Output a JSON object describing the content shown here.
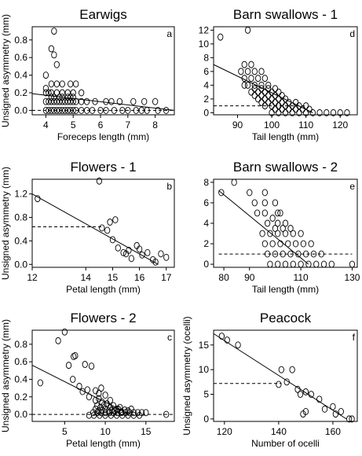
{
  "figure": {
    "panels_order": [
      "a",
      "d",
      "b",
      "e",
      "c",
      "f"
    ]
  },
  "chart_data": [
    {
      "id": "a",
      "letter": "a",
      "type": "scatter",
      "title": "Earwigs",
      "xlabel": "Foreceps length (mm)",
      "ylabel": "Unsigned asymmetry (mm)",
      "xlim": [
        3.5,
        8.7
      ],
      "ylim": [
        -0.05,
        0.95
      ],
      "xticks": [
        4,
        5,
        6,
        7,
        8
      ],
      "yticks": [
        0.0,
        0.2,
        0.4,
        0.6,
        0.8
      ],
      "ytick_labels": [
        "0.0",
        "0.2",
        "0.4",
        "0.6",
        "0.8"
      ],
      "trend": {
        "x": [
          3.5,
          8.7
        ],
        "y": [
          0.19,
          0.0
        ]
      },
      "dashed": {
        "x": [
          3.5,
          8.7
        ],
        "y": [
          0.0,
          0.0
        ]
      },
      "points": {
        "x": [
          4.3,
          4.2,
          4.3,
          4.4,
          4.0,
          4.2,
          4.4,
          4.6,
          4.9,
          5.1,
          4.0,
          4.1,
          4.2,
          4.4,
          4.6,
          4.8,
          5.0,
          5.3,
          4.0,
          4.2,
          4.3,
          4.5,
          4.6,
          4.8,
          4.9,
          5.0,
          4.0,
          4.1,
          4.2,
          4.3,
          4.4,
          4.5,
          4.6,
          4.7,
          4.8,
          4.9,
          5.0,
          5.1,
          5.3,
          5.5,
          5.8,
          6.2,
          6.4,
          6.7,
          7.2,
          7.6,
          8.0,
          4.0,
          4.1,
          4.2,
          4.3,
          4.4,
          4.5,
          4.6,
          4.7,
          4.8,
          4.9,
          5.0,
          5.1,
          5.3,
          5.5,
          5.7,
          6.0,
          6.2,
          6.5,
          6.8,
          7.0,
          7.3,
          7.5,
          7.7,
          8.1,
          8.4
        ],
        "y": [
          0.9,
          0.7,
          0.63,
          0.52,
          0.4,
          0.3,
          0.3,
          0.3,
          0.3,
          0.3,
          0.2,
          0.2,
          0.2,
          0.2,
          0.2,
          0.2,
          0.2,
          0.2,
          0.25,
          0.15,
          0.15,
          0.15,
          0.15,
          0.15,
          0.15,
          0.15,
          0.1,
          0.1,
          0.1,
          0.1,
          0.1,
          0.1,
          0.1,
          0.1,
          0.1,
          0.1,
          0.1,
          0.1,
          0.1,
          0.1,
          0.1,
          0.1,
          0.1,
          0.1,
          0.1,
          0.1,
          0.1,
          0.0,
          0.0,
          0.0,
          0.0,
          0.0,
          0.0,
          0.0,
          0.0,
          0.0,
          0.0,
          0.0,
          0.0,
          0.0,
          0.0,
          0.0,
          0.0,
          0.0,
          0.0,
          0.0,
          0.0,
          0.0,
          0.0,
          0.0,
          0.0,
          0.0
        ]
      }
    },
    {
      "id": "d",
      "letter": "d",
      "type": "scatter",
      "title": "Barn swallows - 1",
      "xlabel": "Tail length (mm)",
      "ylabel": "",
      "xlim": [
        83,
        125
      ],
      "ylim": [
        -0.3,
        12.5
      ],
      "xticks": [
        90,
        100,
        110,
        120
      ],
      "yticks": [
        0,
        2,
        4,
        6,
        8,
        10,
        12
      ],
      "ytick_labels": [
        "0",
        "2",
        "4",
        "6",
        "8",
        "10",
        "12"
      ],
      "trend": {
        "x": [
          83,
          112
        ],
        "y": [
          7.0,
          0.0
        ]
      },
      "dashed": {
        "x": [
          83,
          110
        ],
        "y": [
          1.0,
          1.0
        ]
      },
      "points": {
        "x": [
          85,
          93,
          92,
          94,
          91,
          93,
          95,
          97,
          92,
          94,
          96,
          98,
          92,
          95,
          97,
          99,
          93,
          95,
          97,
          99,
          101,
          94,
          96,
          98,
          100,
          102,
          95,
          97,
          99,
          101,
          103,
          96,
          98,
          100,
          102,
          104,
          97,
          99,
          101,
          103,
          105,
          107,
          98,
          100,
          102,
          104,
          106,
          108,
          110,
          101,
          103,
          105,
          107,
          109,
          111,
          100,
          102,
          104,
          106,
          108,
          110,
          112,
          114,
          116,
          118,
          120,
          122
        ],
        "y": [
          11,
          12,
          7,
          7,
          6,
          6,
          6,
          6,
          5,
          5,
          5,
          5,
          4,
          4,
          4,
          4,
          4,
          3.5,
          3.5,
          3.5,
          3.5,
          3,
          3,
          3,
          3,
          3,
          2.5,
          2.5,
          2.5,
          2.5,
          2.5,
          2,
          2,
          2,
          2,
          2,
          1.5,
          1.5,
          1.5,
          1.5,
          1.5,
          1.5,
          1,
          1,
          1,
          1,
          1,
          1,
          1,
          0.5,
          0.5,
          0.5,
          0.5,
          0.5,
          0.5,
          0,
          0,
          0,
          0,
          0,
          0,
          0,
          0,
          0,
          0,
          0,
          0
        ]
      }
    },
    {
      "id": "b",
      "letter": "b",
      "type": "scatter",
      "title": "Flowers - 1",
      "xlabel": "Petal length (mm)",
      "ylabel": "Unsigned asymmetry (mm)",
      "xlim": [
        12.0,
        17.3
      ],
      "ylim": [
        -0.05,
        1.45
      ],
      "xticks": [
        12,
        14,
        15,
        16,
        17
      ],
      "yticks": [
        0.0,
        0.4,
        0.8,
        1.2
      ],
      "ytick_labels": [
        "0.0",
        "0.4",
        "0.8",
        "1.2"
      ],
      "trend": {
        "x": [
          12.0,
          16.7
        ],
        "y": [
          1.2,
          0.0
        ]
      },
      "dashed": {
        "x": [
          12.0,
          14.6
        ],
        "y": [
          0.64,
          0.64
        ]
      },
      "points": {
        "x": [
          12.2,
          14.5,
          14.6,
          14.8,
          14.9,
          15.1,
          15.0,
          15.2,
          15.4,
          15.5,
          15.6,
          15.7,
          15.9,
          16.0,
          16.1,
          16.3,
          16.5,
          16.6,
          16.8,
          17.0
        ],
        "y": [
          1.12,
          1.42,
          0.62,
          0.58,
          0.72,
          0.76,
          0.42,
          0.28,
          0.2,
          0.18,
          0.24,
          0.1,
          0.32,
          0.26,
          0.16,
          0.2,
          0.08,
          0.04,
          0.18,
          0.12
        ]
      }
    },
    {
      "id": "e",
      "letter": "e",
      "type": "scatter",
      "title": "Barn swallows - 2",
      "xlabel": "Tail length (mm)",
      "ylabel": "",
      "xlim": [
        76,
        132
      ],
      "ylim": [
        -0.3,
        8.3
      ],
      "xticks": [
        80,
        90,
        110,
        130
      ],
      "xtick_positions": [
        80,
        90,
        110,
        130
      ],
      "yticks": [
        0,
        2,
        4,
        6,
        8
      ],
      "ytick_labels": [
        "0",
        "2",
        "4",
        "6",
        "8"
      ],
      "trend": {
        "x": [
          78,
          113
        ],
        "y": [
          7.2,
          0.0
        ]
      },
      "dashed": {
        "x": [
          78,
          130
        ],
        "y": [
          1.0,
          1.0
        ]
      },
      "points": {
        "x": [
          79,
          84,
          90,
          96,
          100,
          92,
          96,
          101,
          102,
          93,
          96,
          99,
          101,
          104,
          97,
          100,
          103,
          106,
          95,
          98,
          101,
          104,
          107,
          110,
          96,
          99,
          102,
          105,
          108,
          111,
          114,
          97,
          100,
          103,
          106,
          109,
          112,
          115,
          118,
          98,
          101,
          104,
          107,
          110,
          113,
          116,
          119,
          122,
          130
        ],
        "y": [
          7,
          8,
          7,
          7,
          6,
          6,
          6,
          5,
          5,
          5,
          5,
          4.5,
          4,
          4,
          4,
          3.5,
          3.5,
          3.5,
          3,
          3,
          3,
          3,
          3,
          3,
          2,
          2,
          2,
          2,
          2,
          2,
          2,
          1,
          1,
          1,
          1,
          1,
          1,
          1,
          1,
          0,
          0,
          0,
          0,
          0,
          0,
          0,
          0,
          0,
          0
        ]
      }
    },
    {
      "id": "c",
      "letter": "c",
      "type": "scatter",
      "title": "Flowers - 2",
      "xlabel": "Petal length (mm)",
      "ylabel": "Unsigned asymmetry (mm)",
      "xlim": [
        1.0,
        18.5
      ],
      "ylim": [
        -0.08,
        0.96
      ],
      "xticks": [
        5,
        10,
        15
      ],
      "yticks": [
        0.0,
        0.2,
        0.4,
        0.6,
        0.8
      ],
      "ytick_labels": [
        "0.0",
        "0.2",
        "0.4",
        "0.6",
        "0.8"
      ],
      "trend": {
        "x": [
          1.0,
          13.0
        ],
        "y": [
          0.56,
          0.0
        ]
      },
      "dashed": {
        "x": [
          1.0,
          18.5
        ],
        "y": [
          0.0,
          0.0
        ]
      },
      "points": {
        "x": [
          2.0,
          4.2,
          5.0,
          6.3,
          6.1,
          5.5,
          7.5,
          8.3,
          6.0,
          6.8,
          7.8,
          8.8,
          9.2,
          9.5,
          10.0,
          7.2,
          8.0,
          8.8,
          9.2,
          9.6,
          10.2,
          10.6,
          9.0,
          9.4,
          9.8,
          10.2,
          10.6,
          11.0,
          11.4,
          11.8,
          8.8,
          9.2,
          9.6,
          10.0,
          10.4,
          10.8,
          11.2,
          11.6,
          12.0,
          12.4,
          12.8,
          13.2,
          8.5,
          9.0,
          9.5,
          10.0,
          10.5,
          11.0,
          11.5,
          12.0,
          12.5,
          13.0,
          13.5,
          14.0,
          14.5,
          15.0,
          17.5,
          8.0,
          8.6,
          9.3,
          10.0,
          10.7,
          11.4,
          12.1,
          12.8,
          13.5,
          14.2
        ],
        "y": [
          0.36,
          0.84,
          0.94,
          0.67,
          0.66,
          0.56,
          0.57,
          0.55,
          0.4,
          0.32,
          0.28,
          0.27,
          0.24,
          0.3,
          0.22,
          0.26,
          0.2,
          0.16,
          0.18,
          0.14,
          0.12,
          0.16,
          0.1,
          0.08,
          0.1,
          0.12,
          0.08,
          0.1,
          0.06,
          0.08,
          0.06,
          0.04,
          0.05,
          0.06,
          0.04,
          0.05,
          0.04,
          0.06,
          0.03,
          0.05,
          0.04,
          0.06,
          0.02,
          0.02,
          0.02,
          0.02,
          0.02,
          0.02,
          0.02,
          0.02,
          0.02,
          0.02,
          0.02,
          0.02,
          0.02,
          0.02,
          0.0,
          -0.01,
          -0.01,
          -0.01,
          -0.01,
          -0.01,
          -0.01,
          -0.01,
          -0.01,
          -0.01,
          -0.01
        ]
      }
    },
    {
      "id": "f",
      "letter": "f",
      "type": "scatter",
      "title": "Peacock",
      "xlabel": "Number of ocelli",
      "ylabel": "Unsigned asymmetry (ocelli)",
      "xlim": [
        116,
        169
      ],
      "ylim": [
        -0.5,
        18
      ],
      "xticks": [
        120,
        140,
        160
      ],
      "yticks": [
        0,
        5,
        10,
        15
      ],
      "ytick_labels": [
        "0",
        "5",
        "10",
        "15"
      ],
      "trend": {
        "x": [
          116,
          165
        ],
        "y": [
          17.3,
          0.0
        ]
      },
      "dashed": {
        "x": [
          116,
          141
        ],
        "y": [
          7.2,
          7.2
        ]
      },
      "points": {
        "x": [
          119,
          121,
          125,
          141,
          145,
          143,
          140,
          147,
          148,
          150,
          152,
          149,
          155,
          157,
          160,
          161,
          163,
          166,
          167,
          150
        ],
        "y": [
          16.8,
          16,
          15,
          10,
          10,
          7.5,
          7,
          6,
          5,
          5.5,
          5,
          1,
          4,
          2,
          2.5,
          1,
          1.5,
          0,
          0,
          1.5
        ]
      }
    }
  ]
}
